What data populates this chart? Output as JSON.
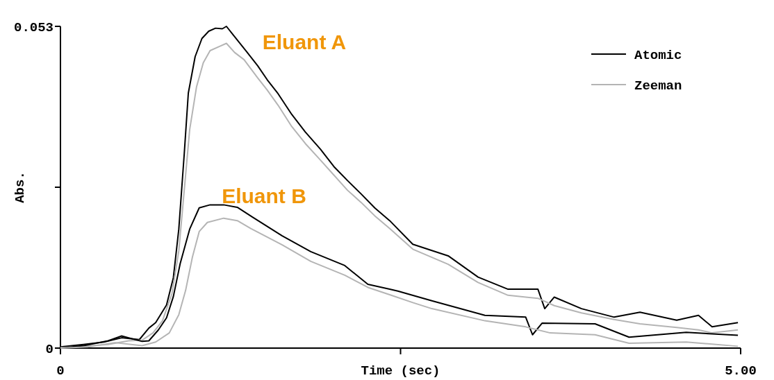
{
  "chart_data": {
    "type": "line",
    "xlabel": "Time (sec)",
    "ylabel": "Abs.",
    "xlim": [
      0,
      5
    ],
    "ylim": [
      0,
      0.053
    ],
    "xticks": [
      0,
      {
        "value": 2.5,
        "label": null
      },
      {
        "value": 5,
        "label": "5.00"
      }
    ],
    "yticks": [
      0,
      {
        "value": 0.0265,
        "label": null
      },
      0.053
    ],
    "grid": false,
    "legend": "top right",
    "marker": "none",
    "line_style": "solid",
    "annotations": [
      "Eluant A",
      "Eluant B"
    ],
    "series": [
      {
        "name": "Atomic",
        "color": "#000000",
        "x": [
          0,
          0.17,
          0.32,
          0.45,
          0.58,
          0.65,
          0.7,
          0.78,
          0.83,
          0.87,
          0.91,
          0.94,
          0.99,
          1.04,
          1.09,
          1.14,
          1.19,
          1.22,
          1.27,
          1.32,
          1.37,
          1.45,
          1.52,
          1.6,
          1.7,
          1.8,
          1.91,
          2.01,
          2.11,
          2.21,
          2.31,
          2.42,
          2.59,
          2.85,
          3.07,
          3.29,
          3.51,
          3.56,
          3.63,
          3.83,
          4.07,
          4.26,
          4.53,
          4.69,
          4.79,
          4.98
        ],
        "values": [
          0.0002,
          0.0006,
          0.001,
          0.0017,
          0.0014,
          0.0033,
          0.0042,
          0.0071,
          0.0116,
          0.0196,
          0.032,
          0.042,
          0.048,
          0.051,
          0.0522,
          0.0527,
          0.0526,
          0.053,
          0.0516,
          0.0502,
          0.0488,
          0.0465,
          0.0442,
          0.0419,
          0.0385,
          0.0356,
          0.0328,
          0.0299,
          0.0276,
          0.0254,
          0.0231,
          0.021,
          0.0171,
          0.0152,
          0.0117,
          0.0097,
          0.0097,
          0.0065,
          0.0084,
          0.0065,
          0.0051,
          0.0059,
          0.0046,
          0.0054,
          0.0035,
          0.0042
        ]
      },
      {
        "name": "Zeeman",
        "color": "#b4b4b4",
        "x": [
          0,
          0.17,
          0.35,
          0.5,
          0.6,
          0.68,
          0.75,
          0.82,
          0.87,
          0.91,
          0.95,
          1.0,
          1.05,
          1.1,
          1.17,
          1.22,
          1.28,
          1.35,
          1.45,
          1.52,
          1.6,
          1.7,
          1.8,
          1.91,
          2.01,
          2.11,
          2.21,
          2.31,
          2.42,
          2.59,
          2.85,
          3.07,
          3.29,
          3.51,
          3.63,
          3.83,
          4.07,
          4.26,
          4.53,
          4.69,
          4.79,
          4.98
        ],
        "values": [
          0.0001,
          0.0003,
          0.0006,
          0.0012,
          0.0013,
          0.0025,
          0.0045,
          0.009,
          0.016,
          0.026,
          0.036,
          0.043,
          0.047,
          0.049,
          0.0497,
          0.0502,
          0.0487,
          0.0475,
          0.0445,
          0.0425,
          0.04,
          0.0365,
          0.0337,
          0.031,
          0.0285,
          0.026,
          0.024,
          0.0218,
          0.0197,
          0.0163,
          0.0138,
          0.0108,
          0.0087,
          0.0082,
          0.007,
          0.0058,
          0.0047,
          0.004,
          0.0034,
          0.003,
          0.0025,
          0.003
        ]
      },
      {
        "color": "#000000",
        "x": [
          0,
          0.17,
          0.35,
          0.45,
          0.6,
          0.65,
          0.72,
          0.78,
          0.83,
          0.88,
          0.95,
          1.02,
          1.1,
          1.2,
          1.3,
          1.41,
          1.63,
          1.84,
          2.09,
          2.26,
          2.42,
          2.48,
          2.73,
          3.12,
          3.42,
          3.47,
          3.54,
          3.93,
          4.18,
          4.6,
          4.98
        ],
        "values": [
          0,
          0.0004,
          0.0012,
          0.002,
          0.0011,
          0.0012,
          0.003,
          0.005,
          0.0085,
          0.0139,
          0.0196,
          0.0231,
          0.0236,
          0.0236,
          0.0232,
          0.0216,
          0.0185,
          0.0159,
          0.0136,
          0.0105,
          0.0097,
          0.0094,
          0.0078,
          0.0054,
          0.0051,
          0.0022,
          0.0041,
          0.004,
          0.0018,
          0.0026,
          0.0021
        ]
      },
      {
        "color": "#b4b4b4",
        "x": [
          0,
          0.2,
          0.4,
          0.6,
          0.7,
          0.8,
          0.87,
          0.92,
          0.97,
          1.02,
          1.08,
          1.2,
          1.3,
          1.4,
          1.63,
          1.84,
          2.09,
          2.26,
          2.42,
          2.59,
          2.73,
          3.12,
          3.42,
          3.6,
          3.93,
          4.18,
          4.6,
          4.98
        ],
        "values": [
          0,
          0.0002,
          0.0009,
          0.0004,
          0.001,
          0.0025,
          0.0055,
          0.0095,
          0.015,
          0.0192,
          0.0207,
          0.0214,
          0.021,
          0.0197,
          0.017,
          0.0143,
          0.012,
          0.01,
          0.0088,
          0.0075,
          0.0065,
          0.0045,
          0.0035,
          0.0025,
          0.0022,
          0.0008,
          0.001,
          0.0003
        ]
      }
    ]
  }
}
